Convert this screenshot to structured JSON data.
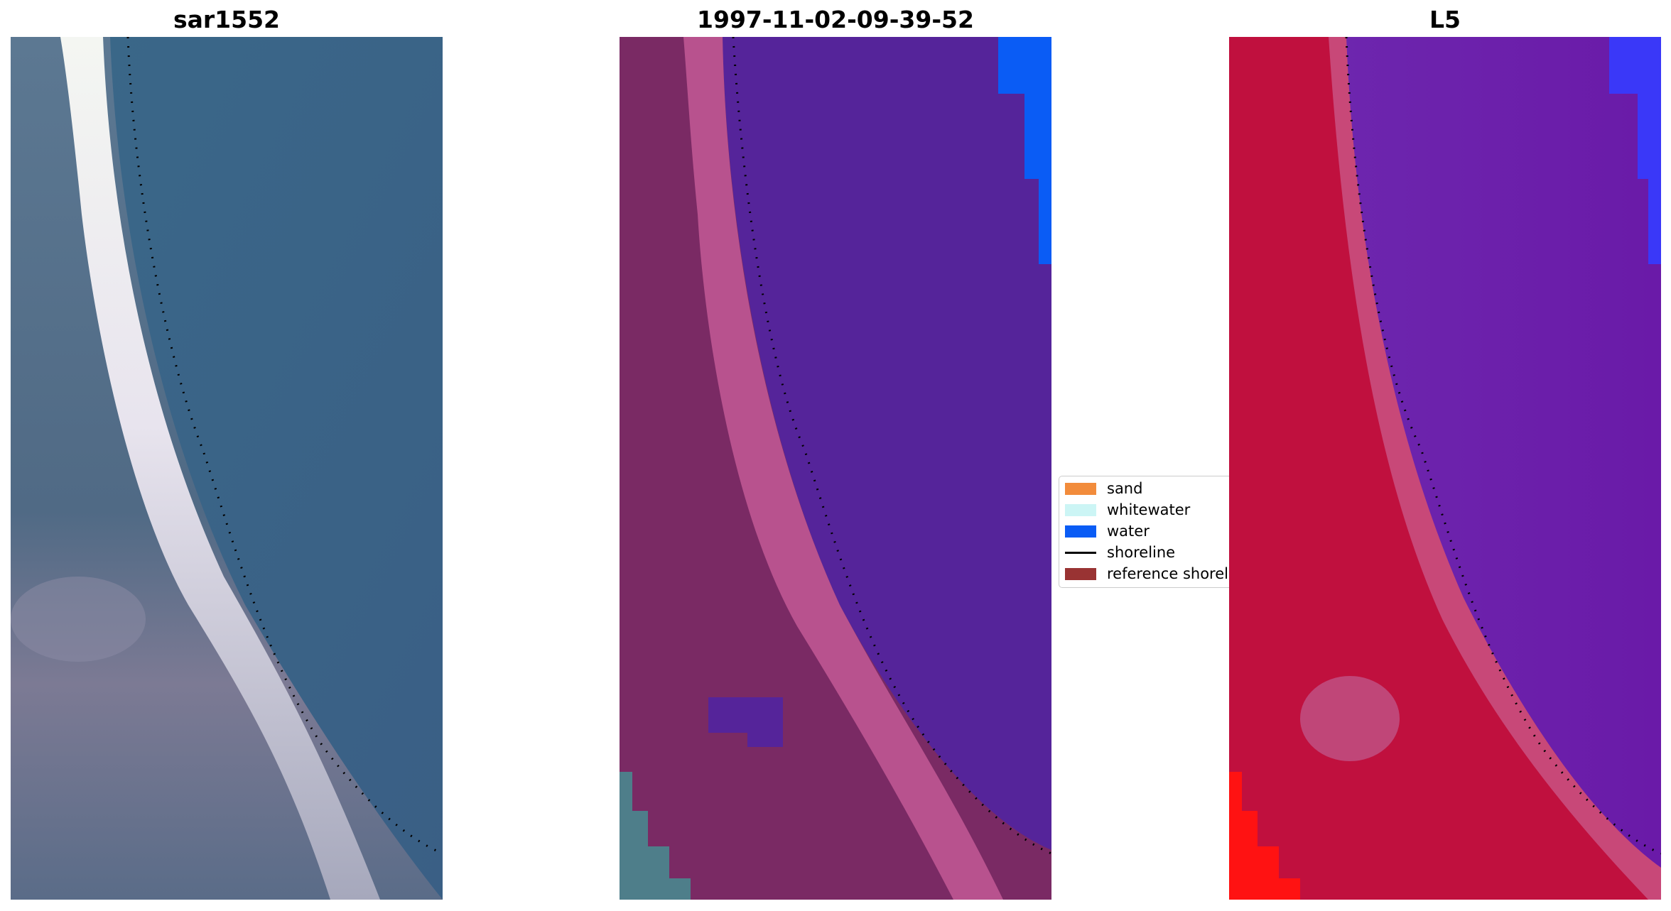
{
  "figure": {
    "panels": [
      {
        "title": "sar1552",
        "kind": "rgb-image"
      },
      {
        "title": "1997-11-02-09-39-52",
        "kind": "classified-image"
      },
      {
        "title": "L5",
        "kind": "water-index-image"
      }
    ]
  },
  "legend": {
    "items": [
      {
        "label": "sand",
        "color": "#f28c3c",
        "symbol": "patch"
      },
      {
        "label": "whitewater",
        "color": "#ccf5f5",
        "symbol": "patch"
      },
      {
        "label": "water",
        "color": "#0a5cf5",
        "symbol": "patch"
      },
      {
        "label": "shoreline",
        "color": "#000000",
        "symbol": "line"
      },
      {
        "label": "reference shoreline",
        "color": "#993333",
        "symbol": "patch"
      }
    ]
  },
  "colors": {
    "rgb_water": "#3a6889",
    "rgb_land": "#506a85",
    "rgb_beach": "#e8e4ee",
    "class_water": "#55249a",
    "class_land": "#7a2a64",
    "class_beach": "#b8528e",
    "class_blue": "#0a5cf5",
    "class_corner": "#4e7e8a",
    "index_water": "#6a1aa8",
    "index_land": "#c0103e",
    "index_beach": "#c84878",
    "index_red": "#ff1212",
    "index_blue": "#3a38f8",
    "shoreline_dots": "#000000"
  }
}
